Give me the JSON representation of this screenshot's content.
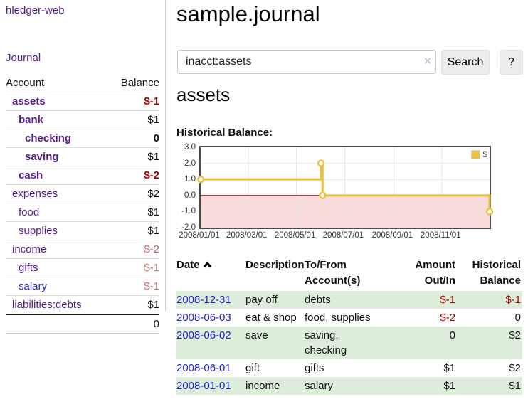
{
  "sidebar": {
    "brand": "hledger-web",
    "journal_link": "Journal",
    "accounts": {
      "col_account": "Account",
      "col_balance": "Balance",
      "rows": [
        {
          "name": "assets",
          "balance": "$-1",
          "depth": 1,
          "bold": true,
          "name_color": "purple",
          "balance_style": "neg-strong"
        },
        {
          "name": "bank",
          "balance": "$1",
          "depth": 2,
          "bold": true,
          "name_color": "purple",
          "balance_style": "plain"
        },
        {
          "name": "checking",
          "balance": "0",
          "depth": 3,
          "bold": true,
          "name_color": "purple",
          "balance_style": "plain"
        },
        {
          "name": "saving",
          "balance": "$1",
          "depth": 3,
          "bold": true,
          "name_color": "purple",
          "balance_style": "plain"
        },
        {
          "name": "cash",
          "balance": "$-2",
          "depth": 2,
          "bold": true,
          "name_color": "purple",
          "balance_style": "neg-strong"
        },
        {
          "name": "expenses",
          "balance": "$2",
          "depth": 1,
          "bold": false,
          "name_color": "purple",
          "balance_style": "plain"
        },
        {
          "name": "food",
          "balance": "$1",
          "depth": 2,
          "bold": false,
          "name_color": "purple",
          "balance_style": "plain"
        },
        {
          "name": "supplies",
          "balance": "$1",
          "depth": 2,
          "bold": false,
          "name_color": "purple",
          "balance_style": "plain"
        },
        {
          "name": "income",
          "balance": "$-2",
          "depth": 1,
          "bold": false,
          "name_color": "purple",
          "balance_style": "neg-soft"
        },
        {
          "name": "gifts",
          "balance": "$-1",
          "depth": 2,
          "bold": false,
          "name_color": "purple",
          "balance_style": "neg-soft"
        },
        {
          "name": "salary",
          "balance": "$-1",
          "depth": 2,
          "bold": false,
          "name_color": "blue",
          "balance_style": "neg-soft"
        },
        {
          "name": "liabilities:debts",
          "balance": "$1",
          "depth": 1,
          "bold": false,
          "name_color": "purple",
          "balance_style": "plain"
        }
      ],
      "total": "0"
    }
  },
  "main": {
    "title": "sample.journal",
    "search": {
      "value": "inacct:assets",
      "clear_icon": "×",
      "search_button": "Search",
      "help_button": "?"
    },
    "account_heading": "assets",
    "chart_title": "Historical Balance:"
  },
  "chart_data": {
    "type": "line",
    "step": true,
    "title": "Historical Balance:",
    "series": [
      {
        "name": "$",
        "color": "#edc240",
        "points": [
          {
            "date": "2008-01-01",
            "value": 1
          },
          {
            "date": "2008-06-01",
            "value": 2
          },
          {
            "date": "2008-06-03",
            "value": 0
          },
          {
            "date": "2008-12-31",
            "value": -1
          }
        ]
      }
    ],
    "x_range": [
      "2008-01-01",
      "2008-12-31"
    ],
    "x_ticks": [
      "2008/01/01",
      "2008/03/01",
      "2008/05/01",
      "2008/07/01",
      "2008/09/01",
      "2008/11/01"
    ],
    "y_ticks": [
      "3.0",
      "2.0",
      "1.0",
      "0.0",
      "-1.0",
      "-2.0"
    ],
    "ylim": [
      -2,
      3
    ],
    "legend": {
      "label": "$",
      "position": "top-right"
    },
    "grid": true,
    "zero_line_color": "#8b0000",
    "negative_fill": "#fadbdb",
    "grid_color": "#e6e6e6"
  },
  "register": {
    "headers": {
      "date": "Date",
      "description": "Description",
      "tofrom": "To/From\nAccount(s)",
      "amount": "Amount\nOut/In",
      "balance": "Historical\nBalance"
    },
    "rows": [
      {
        "date": "2008-12-31",
        "description": "pay off",
        "accounts": "debts",
        "amount": "$-1",
        "balance": "$-1",
        "amount_neg": true,
        "balance_neg": true,
        "shaded": true
      },
      {
        "date": "2008-06-03",
        "description": "eat & shop",
        "accounts": "food, supplies",
        "amount": "$-2",
        "balance": "0",
        "amount_neg": true,
        "balance_neg": false,
        "shaded": false
      },
      {
        "date": "2008-06-02",
        "description": "save",
        "accounts": "saving,\nchecking",
        "amount": "0",
        "balance": "$2",
        "amount_neg": false,
        "balance_neg": false,
        "shaded": true
      },
      {
        "date": "2008-06-01",
        "description": "gift",
        "accounts": "gifts",
        "amount": "$1",
        "balance": "$2",
        "amount_neg": false,
        "balance_neg": false,
        "shaded": false
      },
      {
        "date": "2008-01-01",
        "description": "income",
        "accounts": "salary",
        "amount": "$1",
        "balance": "$1",
        "amount_neg": false,
        "balance_neg": false,
        "shaded": true
      }
    ]
  },
  "colors": {
    "link_purple": "#551a8b",
    "link_blue": "#2222cc",
    "negative_strong": "#990000",
    "negative_soft": "#b36a6a",
    "row_green": "#dcedd9",
    "series_yellow": "#edc240",
    "chart_negative_fill": "#fadbdb",
    "zero_line": "#8b0000"
  }
}
